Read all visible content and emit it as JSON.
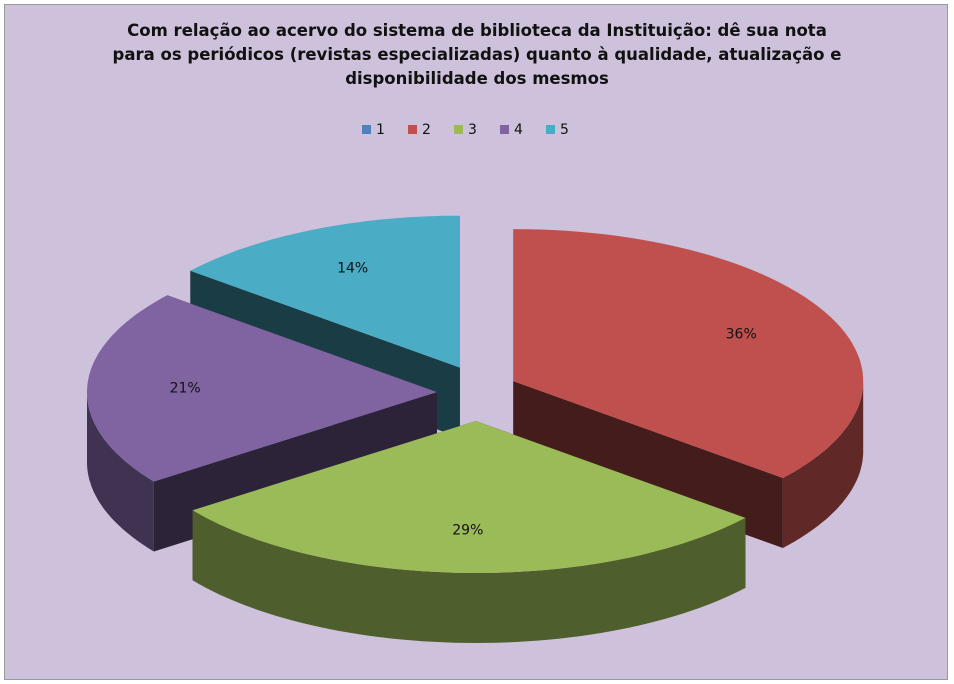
{
  "chart_data": {
    "type": "pie",
    "title": "Com relação ao acervo do sistema de biblioteca da Instituição: dê sua nota para os periódicos (revistas especializadas) quanto à qualidade, atualização e disponibilidade dos mesmos",
    "categories": [
      "1",
      "2",
      "3",
      "4",
      "5"
    ],
    "values": [
      0,
      36,
      29,
      21,
      14
    ],
    "value_labels": [
      null,
      "36%",
      "29%",
      "21%",
      "14%"
    ],
    "colors": [
      "#4f81bd",
      "#c0504d",
      "#9bbb59",
      "#8064a2",
      "#4bacc6"
    ],
    "legend": "top"
  }
}
